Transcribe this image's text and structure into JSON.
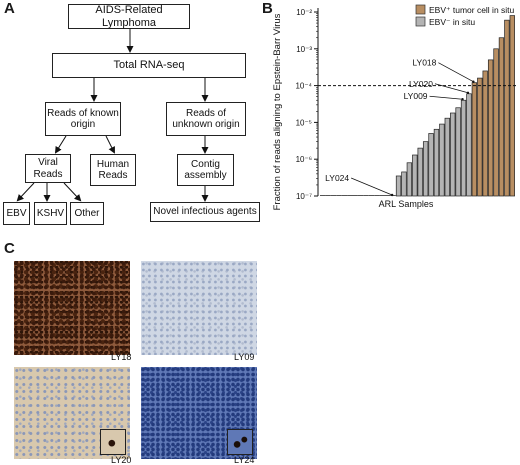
{
  "panels": {
    "a": "A",
    "b": "B",
    "c": "C"
  },
  "flowchart": {
    "top": "AIDS-Related Lymphoma",
    "rnaseq": "Total RNA-seq",
    "known": "Reads of known origin",
    "unknown": "Reads of unknown origin",
    "viral": "Viral Reads",
    "human": "Human Reads",
    "contig": "Contig assembly",
    "novel": "Novel infectious agents",
    "ebv": "EBV",
    "kshv": "KSHV",
    "other": "Other"
  },
  "chart_data": {
    "type": "bar",
    "ylabel": "Fraction of reads aligning to Epstein-Barr Virus",
    "xlabel": "ARL Samples",
    "yscale": "log",
    "ylim": [
      1e-07,
      0.01
    ],
    "yticks": [
      "10⁻⁷",
      "10⁻⁶",
      "10⁻⁵",
      "10⁻⁴",
      "10⁻³",
      "10⁻²"
    ],
    "threshold": 0.0001,
    "legend": [
      "EBV⁺ tumor cell in situ",
      "EBV⁻ in situ"
    ],
    "legend_placement": "top-left",
    "series_colors": {
      "pos": "#b88e62",
      "neg": "#b4b4b4"
    },
    "values": [
      2e-07,
      2e-07,
      2e-07,
      2e-07,
      2e-07,
      2e-07,
      2e-07,
      2e-07,
      2e-07,
      2e-07,
      2e-07,
      2e-07,
      2e-07,
      2e-07,
      3.5e-07,
      4.5e-07,
      8e-07,
      1.3e-06,
      2e-06,
      3e-06,
      5e-06,
      6.5e-06,
      9e-06,
      1.3e-05,
      1.8e-05,
      2.5e-05,
      4e-05,
      6e-05,
      0.00012,
      0.00016,
      0.00025,
      0.0005,
      0.001,
      0.002,
      0.006,
      0.008
    ],
    "status": [
      "none",
      "none",
      "none",
      "none",
      "none",
      "none",
      "none",
      "none",
      "none",
      "none",
      "none",
      "none",
      "none",
      "none",
      "neg",
      "neg",
      "neg",
      "neg",
      "neg",
      "neg",
      "neg",
      "neg",
      "neg",
      "neg",
      "neg",
      "neg",
      "neg",
      "neg",
      "pos",
      "pos",
      "pos",
      "pos",
      "pos",
      "pos",
      "pos",
      "pos"
    ],
    "annotations": [
      {
        "label": "LY018",
        "index": 28
      },
      {
        "label": "LY020",
        "index": 27
      },
      {
        "label": "LY009",
        "index": 26
      },
      {
        "label": "LY024",
        "index": 13
      }
    ]
  },
  "micrographs": [
    {
      "label": "LY18",
      "style": "dense-positive"
    },
    {
      "label": "LY09",
      "style": "pale-negative"
    },
    {
      "label": "LY20",
      "style": "beige-rare-positive"
    },
    {
      "label": "LY24",
      "style": "blue-dense-rare-positive"
    }
  ]
}
